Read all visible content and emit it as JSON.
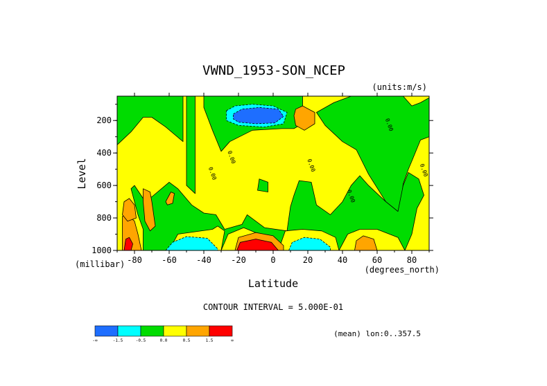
{
  "chart_data": {
    "type": "heatmap",
    "title": "VWND_1953-SON_NCEP",
    "units_label": "(units:m/s)",
    "xlabel": "Latitude",
    "xunits_label": "(degrees_north)",
    "ylabel": "Level",
    "yunits_label": "(millibar)",
    "xlim": [
      -90,
      90
    ],
    "ylim": [
      1000,
      50
    ],
    "x_ticks": [
      -80,
      -60,
      -40,
      -20,
      0,
      20,
      40,
      60,
      80
    ],
    "y_ticks": [
      200,
      400,
      600,
      800,
      1000
    ],
    "contour_interval_text": "CONTOUR INTERVAL = 5.000E-01",
    "mean_text": "(mean) lon:0..357.5",
    "contour_labels": [
      {
        "text": "0.00",
        "lat": -36,
        "lev": 530
      },
      {
        "text": "0.00",
        "lat": -25,
        "lev": 430
      },
      {
        "text": "0.00",
        "lat": 21,
        "lev": 480
      },
      {
        "text": "0.00",
        "lat": 44,
        "lev": 670
      },
      {
        "text": "0.00",
        "lat": 66,
        "lev": 230
      },
      {
        "text": "0.00",
        "lat": 86,
        "lev": 510
      }
    ],
    "legend": {
      "labels": [
        "-∞",
        "-1.5",
        "-0.5",
        "0.0",
        "0.5",
        "1.5",
        "∞"
      ],
      "colors": [
        "#1e6eff",
        "#00ffff",
        "#00dc00",
        "#ffff00",
        "#ffa500",
        "#ff0000"
      ]
    },
    "regions": [
      {
        "level": "green",
        "pts": [
          [
            -90,
            50
          ],
          [
            -50,
            50
          ],
          [
            -50,
            600
          ],
          [
            -45,
            650
          ],
          [
            -45,
            50
          ],
          [
            -90,
            50
          ]
        ]
      },
      {
        "level": "green",
        "pts": [
          [
            -90,
            140
          ],
          [
            -90,
            350
          ],
          [
            -82,
            270
          ],
          [
            -75,
            180
          ],
          [
            -70,
            180
          ],
          [
            -62,
            240
          ],
          [
            -52,
            330
          ],
          [
            -52,
            50
          ],
          [
            -90,
            50
          ]
        ]
      },
      {
        "level": "green",
        "pts": [
          [
            -40,
            50
          ],
          [
            -40,
            120
          ],
          [
            -35,
            260
          ],
          [
            -30,
            390
          ],
          [
            -25,
            330
          ],
          [
            -12,
            260
          ],
          [
            5,
            250
          ],
          [
            12,
            250
          ],
          [
            20,
            200
          ],
          [
            17,
            120
          ],
          [
            17,
            50
          ],
          [
            -40,
            50
          ]
        ]
      },
      {
        "level": "green",
        "pts": [
          [
            25,
            150
          ],
          [
            35,
            90
          ],
          [
            45,
            50
          ],
          [
            75,
            50
          ],
          [
            80,
            110
          ],
          [
            85,
            90
          ],
          [
            90,
            60
          ],
          [
            90,
            300
          ],
          [
            85,
            320
          ],
          [
            80,
            450
          ],
          [
            78,
            500
          ],
          [
            75,
            590
          ],
          [
            74,
            680
          ],
          [
            72,
            760
          ],
          [
            65,
            700
          ],
          [
            55,
            530
          ],
          [
            48,
            380
          ],
          [
            40,
            330
          ],
          [
            30,
            230
          ],
          [
            25,
            150
          ]
        ]
      },
      {
        "level": "green",
        "pts": [
          [
            -8,
            560
          ],
          [
            -3,
            580
          ],
          [
            -3,
            640
          ],
          [
            -9,
            630
          ]
        ]
      },
      {
        "level": "green",
        "pts": [
          [
            -82,
            620
          ],
          [
            -78,
            780
          ],
          [
            -75,
            870
          ],
          [
            -75,
            1000
          ],
          [
            -60,
            1000
          ],
          [
            -55,
            900
          ],
          [
            -35,
            870
          ],
          [
            -32,
            850
          ],
          [
            -28,
            880
          ],
          [
            -30,
            1000
          ],
          [
            -26,
            900
          ],
          [
            -17,
            860
          ],
          [
            -8,
            900
          ],
          [
            3,
            1000
          ],
          [
            7,
            880
          ],
          [
            17,
            870
          ],
          [
            28,
            880
          ],
          [
            36,
            920
          ],
          [
            38,
            1000
          ],
          [
            43,
            900
          ],
          [
            50,
            870
          ],
          [
            60,
            870
          ],
          [
            72,
            920
          ],
          [
            76,
            1000
          ],
          [
            80,
            900
          ],
          [
            83,
            740
          ],
          [
            87,
            660
          ],
          [
            84,
            560
          ],
          [
            78,
            520
          ],
          [
            75,
            600
          ],
          [
            72,
            760
          ],
          [
            65,
            700
          ],
          [
            55,
            600
          ],
          [
            50,
            540
          ],
          [
            45,
            600
          ],
          [
            40,
            700
          ],
          [
            33,
            780
          ],
          [
            25,
            720
          ],
          [
            22,
            580
          ],
          [
            15,
            570
          ],
          [
            12,
            660
          ],
          [
            10,
            730
          ],
          [
            8,
            880
          ],
          [
            -5,
            860
          ],
          [
            -15,
            780
          ],
          [
            -18,
            840
          ],
          [
            -28,
            870
          ],
          [
            -33,
            780
          ],
          [
            -40,
            770
          ],
          [
            -47,
            720
          ],
          [
            -55,
            620
          ],
          [
            -60,
            580
          ],
          [
            -70,
            670
          ],
          [
            -75,
            680
          ],
          [
            -80,
            600
          ]
        ]
      },
      {
        "level": "orange",
        "pts": [
          [
            -62,
            700
          ],
          [
            -59,
            640
          ],
          [
            -57,
            650
          ],
          [
            -58,
            710
          ],
          [
            -61,
            720
          ]
        ]
      },
      {
        "level": "orange",
        "pts": [
          [
            -80,
            820
          ],
          [
            -78,
            900
          ],
          [
            -76,
            1000
          ],
          [
            -87,
            1000
          ],
          [
            -87,
            790
          ],
          [
            -84,
            780
          ]
        ]
      },
      {
        "level": "orange",
        "pts": [
          [
            -86,
            700
          ],
          [
            -83,
            680
          ],
          [
            -80,
            720
          ],
          [
            -79,
            800
          ],
          [
            -84,
            820
          ],
          [
            -87,
            780
          ]
        ]
      },
      {
        "level": "orange",
        "pts": [
          [
            -75,
            620
          ],
          [
            -71,
            640
          ],
          [
            -70,
            700
          ],
          [
            -68,
            850
          ],
          [
            -71,
            880
          ],
          [
            -74,
            820
          ],
          [
            -75,
            700
          ]
        ]
      },
      {
        "level": "orange",
        "pts": [
          [
            -22,
            1000
          ],
          [
            -20,
            920
          ],
          [
            -10,
            890
          ],
          [
            0,
            910
          ],
          [
            6,
            970
          ],
          [
            6,
            1000
          ]
        ]
      },
      {
        "level": "orange",
        "pts": [
          [
            13,
            130
          ],
          [
            17,
            110
          ],
          [
            24,
            150
          ],
          [
            24,
            220
          ],
          [
            18,
            260
          ],
          [
            13,
            230
          ],
          [
            12,
            170
          ]
        ]
      },
      {
        "level": "orange",
        "pts": [
          [
            47,
            1000
          ],
          [
            48,
            940
          ],
          [
            52,
            910
          ],
          [
            58,
            930
          ],
          [
            60,
            1000
          ]
        ]
      },
      {
        "level": "red",
        "pts": [
          [
            -85,
            930
          ],
          [
            -83,
            920
          ],
          [
            -81,
            960
          ],
          [
            -82,
            1000
          ],
          [
            -86,
            1000
          ]
        ]
      },
      {
        "level": "red",
        "pts": [
          [
            -21,
            1000
          ],
          [
            -19,
            950
          ],
          [
            -10,
            930
          ],
          [
            -1,
            950
          ],
          [
            3,
            1000
          ]
        ]
      },
      {
        "level": "cyan",
        "pts": [
          [
            -27,
            140
          ],
          [
            -22,
            110
          ],
          [
            -12,
            100
          ],
          [
            0,
            110
          ],
          [
            8,
            150
          ],
          [
            6,
            220
          ],
          [
            -5,
            240
          ],
          [
            -20,
            230
          ],
          [
            -27,
            200
          ]
        ]
      },
      {
        "level": "blue",
        "pts": [
          [
            -23,
            160
          ],
          [
            -18,
            130
          ],
          [
            -8,
            120
          ],
          [
            3,
            130
          ],
          [
            6,
            175
          ],
          [
            1,
            215
          ],
          [
            -10,
            220
          ],
          [
            -20,
            210
          ],
          [
            -23,
            190
          ]
        ]
      },
      {
        "level": "cyan",
        "pts": [
          [
            -62,
            1000
          ],
          [
            -58,
            950
          ],
          [
            -50,
            915
          ],
          [
            -38,
            925
          ],
          [
            -32,
            990
          ],
          [
            -32,
            1000
          ]
        ]
      },
      {
        "level": "cyan",
        "pts": [
          [
            9,
            1000
          ],
          [
            11,
            950
          ],
          [
            18,
            920
          ],
          [
            27,
            930
          ],
          [
            33,
            980
          ],
          [
            33,
            1000
          ]
        ]
      }
    ]
  }
}
